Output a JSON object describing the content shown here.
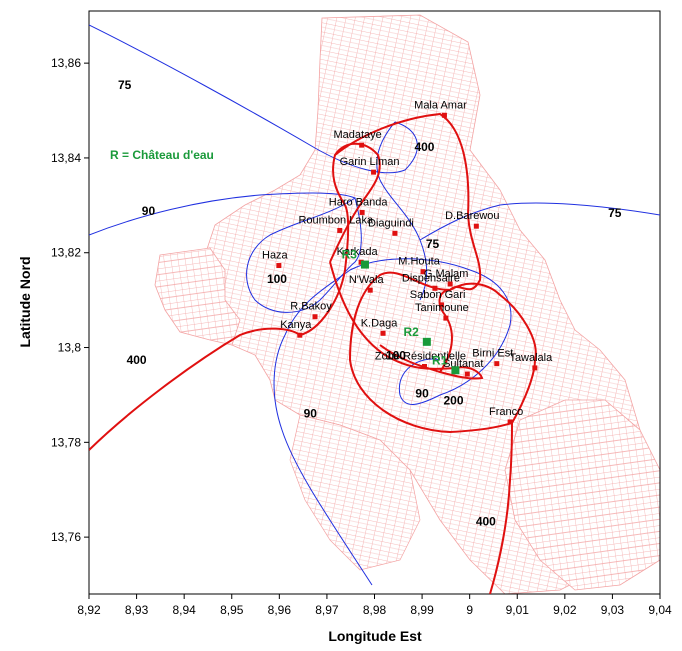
{
  "axes": {
    "xlabel": "Longitude Est",
    "ylabel": "Latitude Nord",
    "x_ticks": [
      8.92,
      8.93,
      8.94,
      8.95,
      8.96,
      8.97,
      8.98,
      8.99,
      9.0,
      9.01,
      9.02,
      9.03,
      9.04
    ],
    "x_tick_labels": [
      "8,92",
      "8,93",
      "8,94",
      "8,95",
      "8,96",
      "8,97",
      "8,98",
      "8,99",
      "9",
      "9,01",
      "9,02",
      "9,03",
      "9,04"
    ],
    "y_ticks": [
      13.76,
      13.78,
      13.8,
      13.82,
      13.84,
      13.86
    ],
    "y_tick_labels": [
      "13,76",
      "13,78",
      "13,8",
      "13,82",
      "13,84",
      "13,86"
    ],
    "xlim": [
      8.92,
      9.04
    ],
    "ylim": [
      13.748,
      13.871
    ]
  },
  "legend_note": "R = Château d'eau",
  "colors": {
    "urban": "#f3a3a3",
    "contour_blue": "#2030e0",
    "contour_red": "#e01010",
    "well": "#e01010",
    "reservoir": "#1a9a3a"
  },
  "places": [
    {
      "name": "Mala Amar",
      "lon": 8.9947,
      "lat": 13.849
    },
    {
      "name": "Madataye",
      "lon": 8.9773,
      "lat": 13.8427
    },
    {
      "name": "Garin Liman",
      "lon": 8.9798,
      "lat": 13.837
    },
    {
      "name": "Haro Banda",
      "lon": 8.9774,
      "lat": 13.8285
    },
    {
      "name": "Roumbon Laka",
      "lon": 8.9727,
      "lat": 13.8247
    },
    {
      "name": "Diaguindi",
      "lon": 8.9843,
      "lat": 13.8241
    },
    {
      "name": "D.Barewou",
      "lon": 9.0014,
      "lat": 13.8256
    },
    {
      "name": "Haza",
      "lon": 8.9599,
      "lat": 13.8173
    },
    {
      "name": "Karkada",
      "lon": 8.9772,
      "lat": 13.818
    },
    {
      "name": "M.Houta",
      "lon": 8.9902,
      "lat": 13.816
    },
    {
      "name": "N'Wala",
      "lon": 8.9791,
      "lat": 13.8121
    },
    {
      "name": "Dispensaire",
      "lon": 8.9927,
      "lat": 13.8125
    },
    {
      "name": "G.Malam",
      "lon": 8.9959,
      "lat": 13.8134
    },
    {
      "name": "R.Bakoy",
      "lon": 8.9675,
      "lat": 13.8065
    },
    {
      "name": "Kanya",
      "lon": 8.9643,
      "lat": 13.8026
    },
    {
      "name": "Sabon Gari",
      "lon": 8.9941,
      "lat": 13.809
    },
    {
      "name": "Tanimoune",
      "lon": 8.995,
      "lat": 13.8062
    },
    {
      "name": "K.Daga",
      "lon": 8.9818,
      "lat": 13.803
    },
    {
      "name": "Tawalala",
      "lon": 9.0137,
      "lat": 13.7957
    },
    {
      "name": "Birni Est",
      "lon": 9.0057,
      "lat": 13.7966
    },
    {
      "name": "Sultanat",
      "lon": 8.9995,
      "lat": 13.7944
    },
    {
      "name": "Zone Résidentielle",
      "lon": 8.9905,
      "lat": 13.796
    },
    {
      "name": "Franco",
      "lon": 9.0085,
      "lat": 13.7843
    }
  ],
  "reservoirs": [
    {
      "name": "R3",
      "lon": 8.978,
      "lat": 13.8175
    },
    {
      "name": "R2",
      "lon": 8.991,
      "lat": 13.8012
    },
    {
      "name": "R1",
      "lon": 8.997,
      "lat": 13.7952
    }
  ],
  "contour_labels": [
    {
      "text": "75",
      "lon": 8.9275,
      "lat": 13.8545,
      "color": "blue"
    },
    {
      "text": "75",
      "lon": 9.0305,
      "lat": 13.8275,
      "color": "blue"
    },
    {
      "text": "75",
      "lon": 8.9922,
      "lat": 13.821,
      "color": "blue"
    },
    {
      "text": "90",
      "lon": 8.9325,
      "lat": 13.828,
      "color": "blue"
    },
    {
      "text": "90",
      "lon": 8.9665,
      "lat": 13.7852,
      "color": "blue"
    },
    {
      "text": "90",
      "lon": 8.99,
      "lat": 13.7895,
      "color": "blue"
    },
    {
      "text": "100",
      "lon": 8.9595,
      "lat": 13.8136,
      "color": "blue"
    },
    {
      "text": "100",
      "lon": 8.9845,
      "lat": 13.7975,
      "color": "red"
    },
    {
      "text": "200",
      "lon": 8.9966,
      "lat": 13.788,
      "color": "red"
    },
    {
      "text": "400",
      "lon": 8.9905,
      "lat": 13.8415,
      "color": "red"
    },
    {
      "text": "400",
      "lon": 8.93,
      "lat": 13.7965,
      "color": "red"
    },
    {
      "text": "400",
      "lon": 9.0034,
      "lat": 13.7625,
      "color": "red"
    }
  ]
}
